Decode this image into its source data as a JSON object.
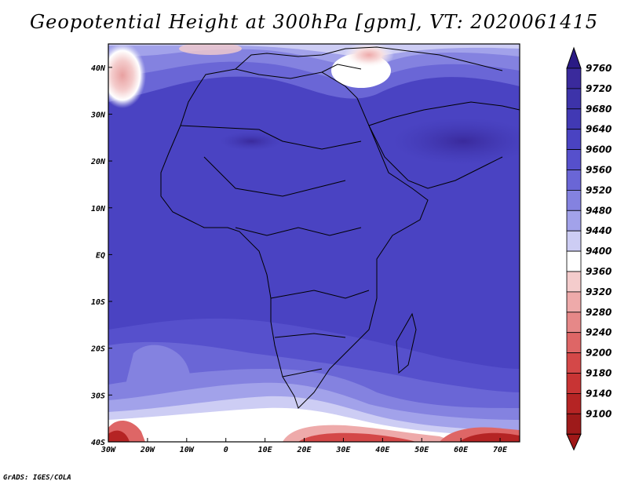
{
  "title": "Geopotential Height at 300hPa [gpm], VT: 2020061415",
  "credit": "GrADS: IGES/COLA",
  "map": {
    "lon_range": [
      -30,
      75
    ],
    "lat_range": [
      -40,
      45
    ],
    "x_ticks": [
      {
        "value": -30,
        "label": "30W"
      },
      {
        "value": -20,
        "label": "20W"
      },
      {
        "value": -10,
        "label": "10W"
      },
      {
        "value": 0,
        "label": "0"
      },
      {
        "value": 10,
        "label": "10E"
      },
      {
        "value": 20,
        "label": "20E"
      },
      {
        "value": 30,
        "label": "30E"
      },
      {
        "value": 40,
        "label": "40E"
      },
      {
        "value": 50,
        "label": "50E"
      },
      {
        "value": 60,
        "label": "60E"
      },
      {
        "value": 70,
        "label": "70E"
      }
    ],
    "y_ticks": [
      {
        "value": 40,
        "label": "40N"
      },
      {
        "value": 30,
        "label": "30N"
      },
      {
        "value": 20,
        "label": "20N"
      },
      {
        "value": 10,
        "label": "10N"
      },
      {
        "value": 0,
        "label": "EQ"
      },
      {
        "value": -10,
        "label": "10S"
      },
      {
        "value": -20,
        "label": "20S"
      },
      {
        "value": -30,
        "label": "30S"
      },
      {
        "value": -40,
        "label": "40S"
      }
    ]
  },
  "colorbar": {
    "levels": [
      {
        "label": "9760",
        "color": "#3a2a9c"
      },
      {
        "label": "9720",
        "color": "#3d33a9"
      },
      {
        "label": "9680",
        "color": "#4139b4"
      },
      {
        "label": "9640",
        "color": "#4a43c2"
      },
      {
        "label": "9600",
        "color": "#5650cc"
      },
      {
        "label": "9560",
        "color": "#6a66d6"
      },
      {
        "label": "9520",
        "color": "#8482e0"
      },
      {
        "label": "9480",
        "color": "#a2a2ea"
      },
      {
        "label": "9440",
        "color": "#cdcdf4"
      },
      {
        "label": "9400",
        "color": "#ffffff"
      },
      {
        "label": "9360",
        "color": "#f4cccc"
      },
      {
        "label": "9320",
        "color": "#eeaaaa"
      },
      {
        "label": "9280",
        "color": "#e68888"
      },
      {
        "label": "9240",
        "color": "#de6666"
      },
      {
        "label": "9200",
        "color": "#d44848"
      },
      {
        "label": "9180",
        "color": "#c83434"
      },
      {
        "label": "9140",
        "color": "#b52424"
      },
      {
        "label": "9100",
        "color": "#9e1a1a"
      }
    ],
    "top_arrow_color": "#2a1a85",
    "bottom_arrow_color": "#a01818"
  }
}
